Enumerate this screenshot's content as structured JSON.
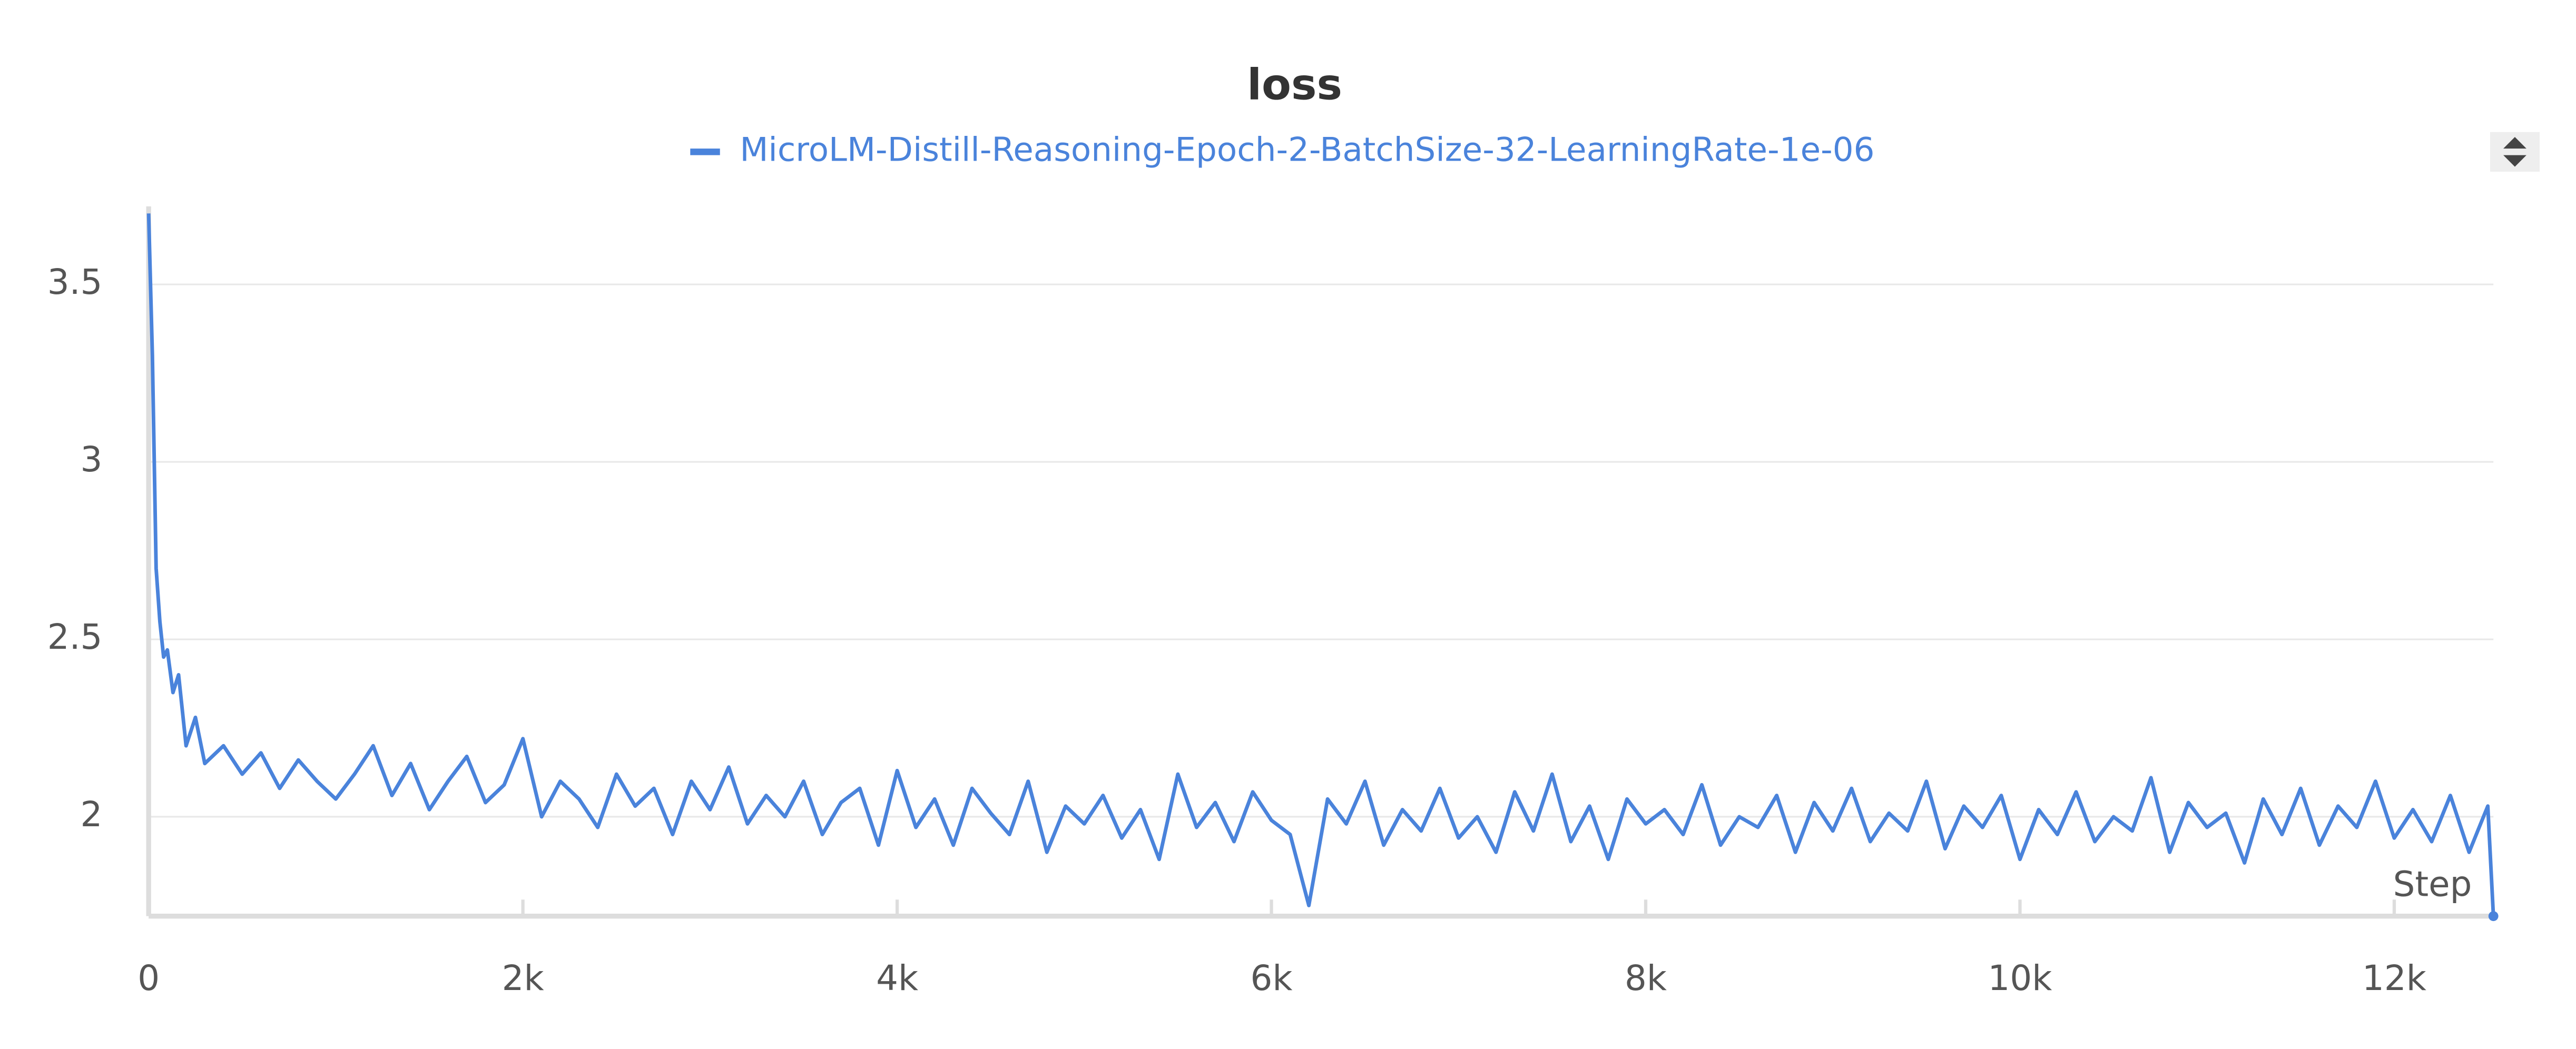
{
  "chart_data": {
    "type": "line",
    "title": "loss",
    "x_label": "Step",
    "series": [
      {
        "name": "MicroLM-Distill-Reasoning-Epoch-2-BatchSize-32-LearningRate-1e-06",
        "color": "#4a83db",
        "x": [
          0,
          20,
          40,
          60,
          80,
          100,
          130,
          160,
          200,
          250,
          300,
          400,
          500,
          600,
          700,
          800,
          900,
          1000,
          1100,
          1200,
          1300,
          1400,
          1500,
          1600,
          1700,
          1800,
          1900,
          2000,
          2100,
          2200,
          2300,
          2400,
          2500,
          2600,
          2700,
          2800,
          2900,
          3000,
          3100,
          3200,
          3300,
          3400,
          3500,
          3600,
          3700,
          3800,
          3900,
          4000,
          4100,
          4200,
          4300,
          4400,
          4500,
          4600,
          4700,
          4800,
          4900,
          5000,
          5100,
          5200,
          5300,
          5400,
          5500,
          5600,
          5700,
          5800,
          5900,
          6000,
          6100,
          6200,
          6300,
          6400,
          6500,
          6600,
          6700,
          6800,
          6900,
          7000,
          7100,
          7200,
          7300,
          7400,
          7500,
          7600,
          7700,
          7800,
          7900,
          8000,
          8100,
          8200,
          8300,
          8400,
          8500,
          8600,
          8700,
          8800,
          8900,
          9000,
          9100,
          9200,
          9300,
          9400,
          9500,
          9600,
          9700,
          9800,
          9900,
          10000,
          10100,
          10200,
          10300,
          10400,
          10500,
          10600,
          10700,
          10800,
          10900,
          11000,
          11100,
          11200,
          11300,
          11400,
          11500,
          11600,
          11700,
          11800,
          11900,
          12000,
          12100,
          12200,
          12300,
          12400,
          12500,
          12530
        ],
        "values": [
          3.7,
          3.3,
          2.7,
          2.55,
          2.45,
          2.47,
          2.35,
          2.4,
          2.2,
          2.28,
          2.15,
          2.2,
          2.12,
          2.18,
          2.08,
          2.16,
          2.1,
          2.05,
          2.12,
          2.2,
          2.06,
          2.15,
          2.02,
          2.1,
          2.17,
          2.04,
          2.09,
          2.22,
          2.0,
          2.1,
          2.05,
          1.97,
          2.12,
          2.03,
          2.08,
          1.95,
          2.1,
          2.02,
          2.14,
          1.98,
          2.06,
          2.0,
          2.1,
          1.95,
          2.04,
          2.08,
          1.92,
          2.13,
          1.97,
          2.05,
          1.92,
          2.08,
          2.01,
          1.95,
          2.1,
          1.9,
          2.03,
          1.98,
          2.06,
          1.94,
          2.02,
          1.88,
          2.12,
          1.97,
          2.04,
          1.93,
          2.07,
          1.99,
          1.95,
          1.75,
          2.05,
          1.98,
          2.1,
          1.92,
          2.02,
          1.96,
          2.08,
          1.94,
          2.0,
          1.9,
          2.07,
          1.96,
          2.12,
          1.93,
          2.03,
          1.88,
          2.05,
          1.98,
          2.02,
          1.95,
          2.09,
          1.92,
          2.0,
          1.97,
          2.06,
          1.9,
          2.04,
          1.96,
          2.08,
          1.93,
          2.01,
          1.96,
          2.1,
          1.91,
          2.03,
          1.97,
          2.06,
          1.88,
          2.02,
          1.95,
          2.07,
          1.93,
          2.0,
          1.96,
          2.11,
          1.9,
          2.04,
          1.97,
          2.01,
          1.87,
          2.05,
          1.95,
          2.08,
          1.92,
          2.03,
          1.97,
          2.1,
          1.94,
          2.02,
          1.93,
          2.06,
          1.9,
          2.03,
          1.72
        ]
      }
    ],
    "xlim": [
      0,
      12530
    ],
    "ylim": [
      1.72,
      3.72
    ],
    "xticks": [
      0,
      {
        "value": 2000,
        "label": "2k"
      },
      {
        "value": 4000,
        "label": "4k"
      },
      {
        "value": 6000,
        "label": "6k"
      },
      {
        "value": 8000,
        "label": "8k"
      },
      {
        "value": 10000,
        "label": "10k"
      },
      {
        "value": 12000,
        "label": "12k"
      }
    ],
    "yticks": [
      2,
      2.5,
      3,
      3.5
    ],
    "grid": true
  }
}
